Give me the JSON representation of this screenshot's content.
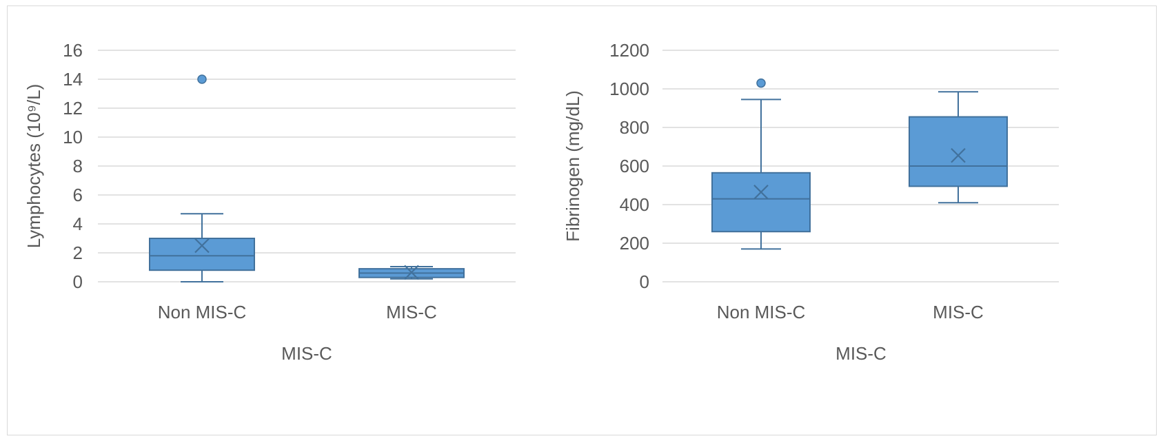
{
  "chart_data": [
    {
      "type": "box",
      "ylabel": "Lymphocytes (10⁹/L)",
      "xlabel": "MIS-C",
      "ylim": [
        0,
        16
      ],
      "yticks": [
        0,
        2,
        4,
        6,
        8,
        10,
        12,
        14,
        16
      ],
      "grid": true,
      "color": "#5B9BD5",
      "edge_color": "#41719C",
      "categories": [
        "Non MIS-C",
        "MIS-C"
      ],
      "boxes": [
        {
          "category": "Non MIS-C",
          "whisker_low": 0.0,
          "q1": 0.8,
          "median": 1.8,
          "q3": 3.0,
          "whisker_high": 4.7,
          "mean": 2.5,
          "outliers": [
            14.0
          ]
        },
        {
          "category": "MIS-C",
          "whisker_low": 0.2,
          "q1": 0.3,
          "median": 0.6,
          "q3": 0.9,
          "whisker_high": 1.05,
          "mean": 0.65,
          "outliers": []
        }
      ]
    },
    {
      "type": "box",
      "ylabel": "Fibrinogen (mg/dL)",
      "xlabel": "MIS-C",
      "ylim": [
        0,
        1200
      ],
      "yticks": [
        0,
        200,
        400,
        600,
        800,
        1000,
        1200
      ],
      "grid": true,
      "color": "#5B9BD5",
      "edge_color": "#41719C",
      "categories": [
        "Non MIS-C",
        "MIS-C"
      ],
      "boxes": [
        {
          "category": "Non MIS-C",
          "whisker_low": 170,
          "q1": 260,
          "median": 430,
          "q3": 565,
          "whisker_high": 945,
          "mean": 465,
          "outliers": [
            1030
          ]
        },
        {
          "category": "MIS-C",
          "whisker_low": 410,
          "q1": 495,
          "median": 600,
          "q3": 855,
          "whisker_high": 985,
          "mean": 655,
          "outliers": []
        }
      ]
    }
  ]
}
